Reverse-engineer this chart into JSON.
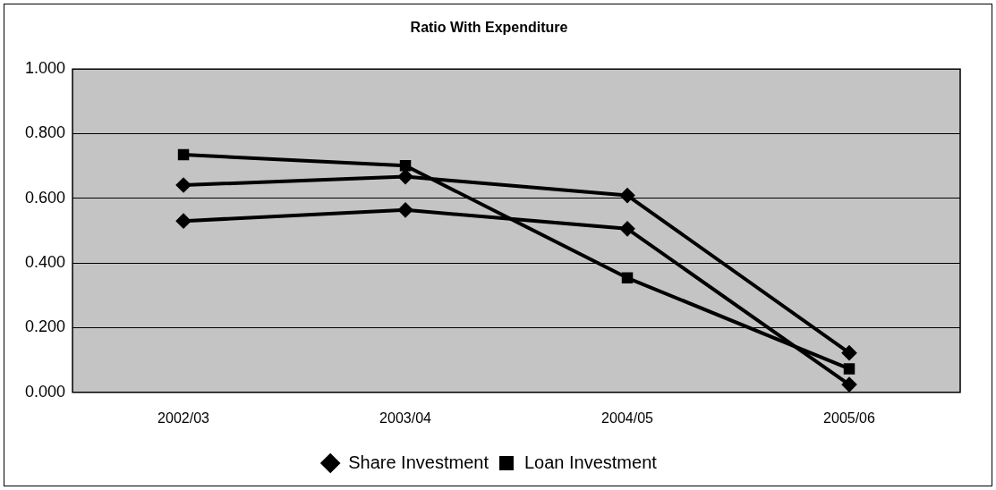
{
  "chart_data": {
    "type": "line",
    "title": "Ratio With Expenditure",
    "categories": [
      "2002/03",
      "2003/04",
      "2004/05",
      "2005/06"
    ],
    "series": [
      {
        "color": "#000000",
        "marker": "diamond",
        "values": [
          0.641,
          0.667,
          0.609,
          0.122
        ]
      },
      {
        "name": "Share Investment",
        "color": "#000000",
        "marker": "diamond",
        "values": [
          0.53,
          0.564,
          0.506,
          0.024
        ]
      },
      {
        "name": "Loan Investment",
        "color": "#000000",
        "marker": "square",
        "values": [
          0.735,
          0.701,
          0.354,
          0.073
        ]
      }
    ],
    "ylim": [
      0,
      1
    ],
    "yticks": [
      {
        "value": 0,
        "label": "0.000"
      },
      {
        "value": 0.2,
        "label": "0.200"
      },
      {
        "value": 0.4,
        "label": "0.400"
      },
      {
        "value": 0.6,
        "label": "0.600"
      },
      {
        "value": 0.8,
        "label": "0.800"
      },
      {
        "value": 1,
        "label": "1.000"
      }
    ],
    "grid": "y",
    "legend": "bottom"
  }
}
